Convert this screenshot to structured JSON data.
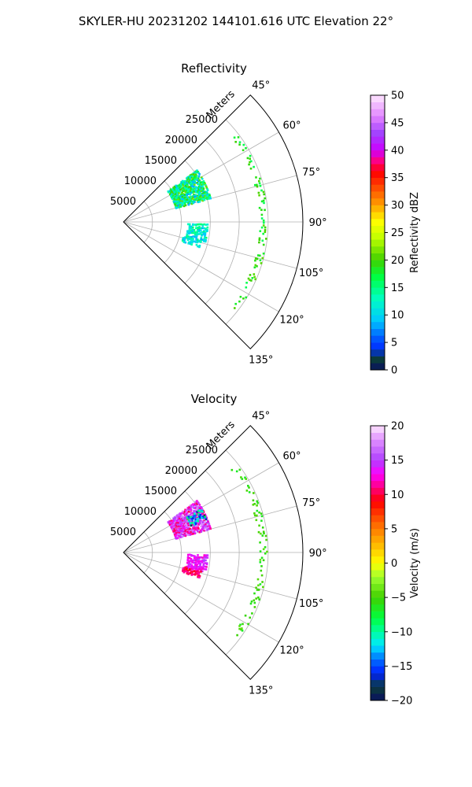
{
  "figure": {
    "suptitle": "SKYLER-HU  20231202  144101.616 UTC Elevation 22°"
  },
  "colors": {
    "background": "#ffffff",
    "grid": "#b0b0b0",
    "axis": "#000000"
  },
  "chart_data": [
    {
      "type": "heatmap",
      "subtype": "polar-sector",
      "title": "Reflectivity",
      "r_label": "Meters",
      "r_ticks": [
        5000,
        10000,
        15000,
        20000,
        25000
      ],
      "r_range": [
        0,
        31000
      ],
      "theta_ticks": [
        "45°",
        "60°",
        "75°",
        "90°",
        "105°",
        "120°",
        "135°"
      ],
      "theta_range_deg": [
        45,
        135
      ],
      "grid": true,
      "colorbar": {
        "label": "Reflectivity dBZ",
        "range": [
          0,
          50
        ],
        "ticks": [
          "0",
          "5",
          "10",
          "15",
          "20",
          "25",
          "30",
          "35",
          "40",
          "45",
          "50"
        ],
        "stops": [
          [
            0,
            "#0a1060"
          ],
          [
            2,
            "#0b3d3a"
          ],
          [
            4,
            "#0030ff"
          ],
          [
            6,
            "#0060ff"
          ],
          [
            9,
            "#00c8ff"
          ],
          [
            13,
            "#00ffc0"
          ],
          [
            17,
            "#00ff40"
          ],
          [
            20,
            "#40d000"
          ],
          [
            24,
            "#c0ff00"
          ],
          [
            27,
            "#ffff00"
          ],
          [
            30,
            "#ffa000"
          ],
          [
            33,
            "#ff5000"
          ],
          [
            36,
            "#ff0000"
          ],
          [
            38,
            "#ff0080"
          ],
          [
            40,
            "#cc00ff"
          ],
          [
            43,
            "#a040ff"
          ],
          [
            46,
            "#e080ff"
          ],
          [
            50,
            "#ffe8ff"
          ]
        ]
      },
      "echo_regions": [
        {
          "theta": [
            54,
            74
          ],
          "r": [
            9300,
            15500
          ],
          "value": [
            8,
            22
          ],
          "density": 0.75
        },
        {
          "theta": [
            91,
            103
          ],
          "r": [
            11000,
            14500
          ],
          "value": [
            8,
            16
          ],
          "density": 0.55
        },
        {
          "theta": [
            103,
            108
          ],
          "r": [
            10500,
            13800
          ],
          "value": [
            8,
            15
          ],
          "density": 0.55
        },
        {
          "theta": [
            52,
            128
          ],
          "r": [
            23500,
            24800
          ],
          "value": [
            16,
            21
          ],
          "density": 0.16
        }
      ]
    },
    {
      "type": "heatmap",
      "subtype": "polar-sector",
      "title": "Velocity",
      "r_label": "Meters",
      "r_ticks": [
        5000,
        10000,
        15000,
        20000,
        25000
      ],
      "r_range": [
        0,
        31000
      ],
      "theta_ticks": [
        "45°",
        "60°",
        "75°",
        "90°",
        "105°",
        "120°",
        "135°"
      ],
      "theta_range_deg": [
        45,
        135
      ],
      "grid": true,
      "colorbar": {
        "label": "Velocity (m/s)",
        "range": [
          -20,
          20
        ],
        "ticks": [
          "−20",
          "−15",
          "−10",
          "−5",
          "0",
          "5",
          "10",
          "15",
          "20"
        ],
        "stops": [
          [
            -20,
            "#0a1060"
          ],
          [
            -18,
            "#0b3d3a"
          ],
          [
            -16,
            "#0020ff"
          ],
          [
            -14,
            "#0070ff"
          ],
          [
            -12,
            "#00e8ff"
          ],
          [
            -10,
            "#00ffa0"
          ],
          [
            -8,
            "#00ff40"
          ],
          [
            -5,
            "#40d000"
          ],
          [
            -2,
            "#a0ff30"
          ],
          [
            0,
            "#ffff00"
          ],
          [
            3,
            "#ffb000"
          ],
          [
            6,
            "#ff6000"
          ],
          [
            9,
            "#ff0000"
          ],
          [
            11,
            "#ff0080"
          ],
          [
            13,
            "#ff00ff"
          ],
          [
            15,
            "#b040ff"
          ],
          [
            18,
            "#e090ff"
          ],
          [
            20,
            "#ffe8ff"
          ]
        ]
      },
      "echo_regions": [
        {
          "theta": [
            54,
            74
          ],
          "r": [
            9300,
            15500
          ],
          "value": [
            10,
            18
          ],
          "density": 0.75
        },
        {
          "theta": [
            60,
            68
          ],
          "r": [
            12500,
            15500
          ],
          "value": [
            -18,
            -8
          ],
          "density": 0.45
        },
        {
          "theta": [
            91,
            103
          ],
          "r": [
            11000,
            14500
          ],
          "value": [
            12,
            15
          ],
          "density": 0.6
        },
        {
          "theta": [
            103,
            108
          ],
          "r": [
            10500,
            13800
          ],
          "value": [
            9,
            12
          ],
          "density": 0.6
        },
        {
          "theta": [
            52,
            128
          ],
          "r": [
            23500,
            24800
          ],
          "value": [
            -7,
            -4
          ],
          "density": 0.16
        }
      ]
    }
  ]
}
